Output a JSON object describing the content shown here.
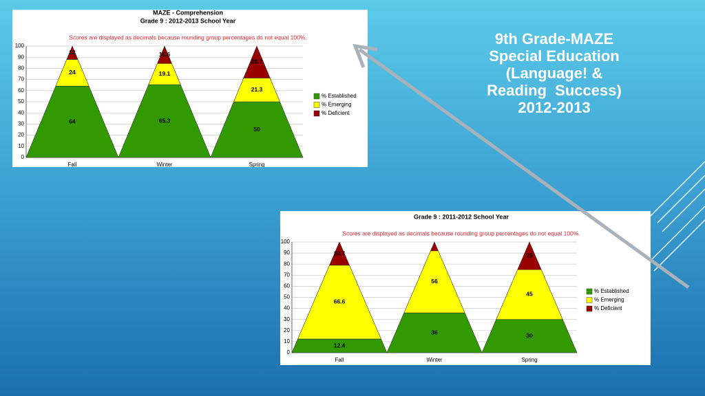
{
  "slide": {
    "title": [
      "9th Grade-MAZE",
      "Special Education",
      "(Language! &",
      "Reading  Success)",
      "2012-2013"
    ]
  },
  "chart_data": [
    {
      "type": "pyramid",
      "title": "MAZE - Comprehension",
      "subtitle": "Grade 9 : 2012-2013 School Year",
      "annotation": "Scores are displayed as decimals because rounding group percentages do not equal 100%.",
      "categories": [
        "Fall",
        "Winter",
        "Spring"
      ],
      "series": [
        {
          "name": "% Established",
          "color": "#339900",
          "values": [
            64,
            65.3,
            50
          ]
        },
        {
          "name": "% Emerging",
          "color": "#ffff00",
          "values": [
            24,
            19.1,
            21.3
          ]
        },
        {
          "name": "% Deficient",
          "color": "#990000",
          "values": [
            12,
            15.6,
            28.7
          ]
        }
      ],
      "ylim": [
        0,
        100
      ],
      "yticks": [
        0,
        10,
        20,
        30,
        40,
        50,
        60,
        70,
        80,
        90,
        100
      ],
      "grid": true
    },
    {
      "type": "pyramid",
      "subtitle": "Grade 9 : 2011-2012 School Year",
      "annotation": "Scores are displayed as decimals because rounding group percentages do not equal 100%.",
      "categories": [
        "Fall",
        "Winter",
        "Spring"
      ],
      "series": [
        {
          "name": "% Established",
          "color": "#339900",
          "values": [
            12.4,
            36,
            30
          ]
        },
        {
          "name": "% Emerging",
          "color": "#ffff00",
          "values": [
            66.6,
            56,
            45
          ]
        },
        {
          "name": "% Deficient",
          "color": "#990000",
          "values": [
            20.7,
            8,
            25
          ]
        }
      ],
      "ylim": [
        0,
        100
      ],
      "yticks": [
        0,
        10,
        20,
        30,
        40,
        50,
        60,
        70,
        80,
        90,
        100
      ],
      "grid": true
    }
  ]
}
